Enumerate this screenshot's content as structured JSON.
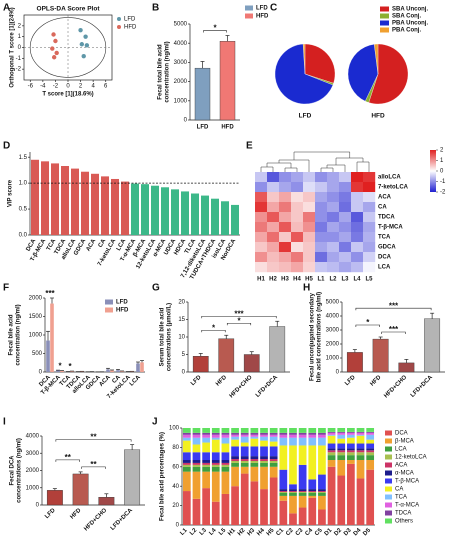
{
  "chart_data": [
    {
      "label": "A",
      "type": "scatter",
      "title": "OPLS-DA Score Plot",
      "xlabel": "T score [1](18.6%)",
      "ylabel": [
        "Orthogonal T score [1](24%)"
      ],
      "xlim": [
        -7,
        7
      ],
      "xticks": [
        -6,
        -4,
        -2,
        0,
        2,
        4,
        6
      ],
      "ylim": [
        -3,
        3
      ],
      "yticks": [
        -2,
        -1,
        0,
        1,
        2
      ],
      "series": [
        {
          "name": "LFD",
          "color": "#5f97a8",
          "x": [
            2.0,
            2.8,
            2.2,
            3.0,
            2.5
          ],
          "values": [
            1.6,
            1.0,
            0.3,
            0.2,
            -0.8
          ]
        },
        {
          "name": "HFD",
          "color": "#d9695c",
          "x": [
            -2.3,
            -2.0,
            -2.5,
            -1.8,
            -2.2
          ],
          "values": [
            1.2,
            0.6,
            -0.1,
            -0.5,
            -0.9
          ]
        }
      ]
    },
    {
      "label": "B",
      "type": "bar",
      "categories": [
        "LFD",
        "HFD"
      ],
      "values": [
        2700,
        4100
      ],
      "errors": [
        350,
        300
      ],
      "colors": [
        "#7f9fbf",
        "#f07874"
      ],
      "ylabel": [
        "Fecal total bile acid",
        "concentration (ng/ml)"
      ],
      "ylim": [
        0,
        5000
      ],
      "yticks": [
        0,
        1000,
        2000,
        3000,
        4000,
        5000
      ],
      "annotations": [
        "*"
      ],
      "legend": true
    },
    {
      "label": "C",
      "type": "pie",
      "labels": [
        "SBA Unconj.",
        "SBA Conj.",
        "PBA Unconj.",
        "PBA Conj."
      ],
      "colors": [
        "#d42020",
        "#8cb030",
        "#1a2ad0",
        "#f0a030"
      ],
      "pies": [
        {
          "name": "LFD",
          "values": [
            30,
            1,
            68,
            1
          ]
        },
        {
          "name": "HFD",
          "values": [
            55,
            2,
            41,
            2
          ]
        }
      ]
    },
    {
      "label": "D",
      "type": "bar",
      "categories": [
        "DCA",
        "T-β-MCA",
        "TCA",
        "TDCA",
        "alloLCA",
        "GDCA",
        "ACA",
        "CA",
        "7-ketoLCA",
        "LCA",
        "T-α-MCA",
        "β-MCA",
        "12-ketoLCA",
        "α-MCA",
        "UDCA",
        "HDCA",
        "TLCA",
        "7,12-diketoLCA",
        "TUDCA+THDCA",
        "isoLCA",
        "NorDCA"
      ],
      "values": [
        1.45,
        1.42,
        1.38,
        1.33,
        1.28,
        1.22,
        1.18,
        1.13,
        1.08,
        1.03,
        0.99,
        0.98,
        0.95,
        0.92,
        0.88,
        0.84,
        0.8,
        0.76,
        0.7,
        0.65,
        0.58
      ],
      "colors": [
        "#d95a55",
        "#3cb889"
      ],
      "threshold": 1,
      "ylabel": [
        "VIP score"
      ],
      "ylim": [
        0,
        1.6
      ],
      "yticks": [
        {
          "value": 0,
          "label": "0.0"
        },
        0.5,
        {
          "value": 1,
          "label": "1.0"
        },
        1.5
      ]
    },
    {
      "label": "E",
      "type": "heatmap",
      "rows": [
        "alloLCA",
        "7-ketoLCA",
        "ACA",
        "CA",
        "TDCA",
        "T-β-MCA",
        "TCA",
        "GDCA",
        "DCA",
        "LCA"
      ],
      "columns": [
        "H1",
        "H2",
        "H3",
        "H4",
        "H5",
        "L1",
        "L2",
        "L3",
        "L4",
        "L5"
      ],
      "values": [
        [
          -0.5,
          -1.5,
          -1,
          -0.8,
          -0.5,
          -1,
          -0.8,
          -0.5,
          2,
          1.8
        ],
        [
          -1,
          -0.5,
          -0.8,
          -1,
          -0.3,
          -0.5,
          -0.8,
          -1,
          1.8,
          2
        ],
        [
          1.5,
          0.5,
          0.8,
          0.3,
          0.5,
          -0.8,
          -1,
          -1.2,
          -0.5,
          -0.3
        ],
        [
          1.8,
          0.8,
          1.2,
          0.5,
          0.3,
          -1,
          -0.8,
          -1.3,
          -0.5,
          -0.8
        ],
        [
          1,
          1.5,
          0.8,
          0.5,
          1.2,
          -1,
          -1.2,
          -0.8,
          -1.5,
          -0.5
        ],
        [
          1.2,
          0.8,
          1.5,
          0.6,
          1,
          -1.2,
          -0.8,
          -1,
          -1.3,
          -0.8
        ],
        [
          0.8,
          1.3,
          0.5,
          1.5,
          0.6,
          -1,
          -1,
          -0.8,
          -1.2,
          -0.7
        ],
        [
          0.5,
          0.8,
          1.8,
          0.3,
          0.5,
          -0.8,
          -0.6,
          -1.2,
          -0.5,
          -0.8
        ],
        [
          1,
          0.6,
          0.8,
          1.2,
          0.5,
          -1.3,
          -0.8,
          -0.6,
          -1,
          -0.4
        ],
        [
          0.3,
          0.5,
          0.6,
          0.8,
          0.4,
          -0.5,
          -0.6,
          -0.8,
          -0.6,
          -0.1
        ]
      ],
      "zlim": [
        -2,
        2
      ],
      "zticks": [
        2,
        1,
        0,
        -1,
        -2
      ],
      "colors": [
        "#2020d0",
        "#ffffff",
        "#e02020"
      ]
    },
    {
      "label": "F",
      "type": "bar",
      "categories": [
        "DCA",
        "T-β-MCA",
        "TCA",
        "TDCA",
        "alloLCA",
        "GDCA",
        "ACA",
        "CA",
        "7-ketoLCA",
        "LCA"
      ],
      "series": [
        {
          "name": "LFD",
          "color": "#8a8fb8",
          "values": [
            850,
            40,
            10,
            8,
            5,
            3,
            70,
            50,
            10,
            230
          ],
          "errors": [
            250,
            10,
            3,
            2,
            1,
            1,
            30,
            20,
            3,
            40
          ]
        },
        {
          "name": "HFD",
          "color": "#f0a090",
          "values": [
            1850,
            30,
            20,
            15,
            8,
            5,
            40,
            20,
            15,
            260
          ],
          "errors": [
            150,
            8,
            5,
            4,
            2,
            1,
            15,
            8,
            4,
            50
          ]
        }
      ],
      "ylabel": [
        "Fecal bile acid",
        "concentration (ng/ml)"
      ],
      "ylim": [
        0,
        2000
      ],
      "yticks": [
        0,
        500,
        1000,
        1500,
        2000
      ],
      "annotations": [
        "***",
        "*",
        "*"
      ],
      "legend": true
    },
    {
      "label": "G",
      "type": "bar",
      "categories": [
        "LFD",
        "HFD",
        "HFD+CHO",
        "LFD+DCA"
      ],
      "values": [
        4.5,
        9.5,
        5,
        13
      ],
      "errors": [
        0.8,
        1.0,
        0.8,
        1.5
      ],
      "colors": [
        "#b2403a",
        "#b85a50",
        "#a04848",
        "#b4b4b4"
      ],
      "ylabel": [
        "Serum total bile acid",
        "concentrations (μmol/L)"
      ],
      "ylim": [
        0,
        20
      ],
      "yticks": [
        0,
        5,
        10,
        15,
        20
      ],
      "annotations": [
        "*",
        "*",
        "***"
      ]
    },
    {
      "label": "H",
      "type": "bar",
      "categories": [
        "LFD",
        "HFD",
        "HFD+CHO",
        "LFD+DCA"
      ],
      "values": [
        1400,
        2350,
        650,
        3800
      ],
      "errors": [
        200,
        150,
        250,
        400
      ],
      "colors": [
        "#b2403a",
        "#b85a50",
        "#a04848",
        "#b4b4b4"
      ],
      "ylabel": [
        "Fecal unconjugated secondary",
        "bile acid concentrations (ng/ml)"
      ],
      "ylim": [
        0,
        5000
      ],
      "yticks": [
        0,
        1000,
        2000,
        3000,
        4000,
        5000
      ],
      "annotations": [
        "*",
        "***",
        "***"
      ]
    },
    {
      "label": "I",
      "type": "bar",
      "categories": [
        "LFD",
        "HFD",
        "HFD+CHO",
        "LFD+DCA"
      ],
      "values": [
        850,
        1800,
        450,
        3200
      ],
      "errors": [
        100,
        120,
        200,
        300
      ],
      "colors": [
        "#b2403a",
        "#b85a50",
        "#a04848",
        "#b4b4b4"
      ],
      "ylabel": [
        "Fecal DCA",
        "concentrations (ng/ml)"
      ],
      "ylim": [
        0,
        4000
      ],
      "yticks": [
        0,
        1000,
        2000,
        3000,
        4000
      ],
      "annotations": [
        "**",
        "**",
        "**"
      ]
    },
    {
      "label": "J",
      "type": "bar",
      "stacked": true,
      "categories": [
        "L1",
        "L2",
        "L3",
        "L4",
        "L5",
        "H1",
        "H2",
        "H3",
        "H4",
        "H5",
        "C1",
        "C2",
        "C3",
        "C4",
        "C5",
        "D1",
        "D2",
        "D3",
        "D4",
        "D5"
      ],
      "ylabel": [
        "Fecal bile acid percentages (%)"
      ],
      "ylim": [
        0,
        100
      ],
      "yticks": [
        0,
        20,
        40,
        60,
        80,
        100
      ],
      "legend": true,
      "series": [
        {
          "name": "DCA",
          "color": "#e05050",
          "values": [
            35,
            27,
            38,
            24,
            32,
            40,
            53,
            45,
            37,
            49,
            25,
            12,
            18,
            28,
            16,
            60,
            51,
            63,
            48,
            57
          ]
        },
        {
          "name": "β-MCA",
          "color": "#f0a030",
          "values": [
            20,
            28,
            17,
            31,
            23,
            20,
            7,
            15,
            23,
            11,
            5,
            18,
            12,
            2,
            14,
            7,
            16,
            4,
            19,
            10
          ]
        },
        {
          "name": "LCA",
          "color": "#3f9f3f",
          "values": [
            5,
            5,
            5,
            5,
            5,
            4,
            4,
            4,
            4,
            4,
            3,
            3,
            3,
            3,
            3,
            5,
            5,
            5,
            5,
            5
          ]
        },
        {
          "name": "12-ketoLCA",
          "color": "#a8c050",
          "values": [
            2,
            2,
            2,
            2,
            2,
            2,
            2,
            2,
            2,
            2,
            1,
            1,
            1,
            1,
            1,
            3,
            3,
            3,
            3,
            3
          ]
        },
        {
          "name": "ACA",
          "color": "#cc3366",
          "values": [
            2,
            2,
            2,
            2,
            2,
            2,
            2,
            2,
            2,
            2,
            1,
            1,
            1,
            1,
            1,
            2,
            2,
            2,
            2,
            2
          ]
        },
        {
          "name": "α-MCA",
          "color": "#1c1c8c",
          "values": [
            3,
            3,
            3,
            3,
            3,
            3,
            3,
            3,
            3,
            3,
            2,
            2,
            2,
            2,
            2,
            2,
            2,
            2,
            2,
            2
          ]
        },
        {
          "name": "T-β-MCA",
          "color": "#3a3af0",
          "values": [
            8,
            8,
            8,
            8,
            8,
            10,
            10,
            10,
            10,
            10,
            20,
            5,
            25,
            10,
            15,
            5,
            5,
            5,
            5,
            5
          ]
        },
        {
          "name": "CA",
          "color": "#f2f020",
          "values": [
            12,
            8,
            10,
            13,
            9,
            7,
            4,
            8,
            6,
            5,
            25,
            40,
            20,
            35,
            30,
            8,
            5,
            6,
            8,
            4
          ]
        },
        {
          "name": "TCA",
          "color": "#80c0ff",
          "values": [
            3,
            7,
            5,
            2,
            6,
            3,
            6,
            2,
            4,
            5,
            8,
            8,
            8,
            8,
            8,
            1,
            4,
            3,
            1,
            5
          ]
        },
        {
          "name": "T-α-MCA",
          "color": "#e060e0",
          "values": [
            3,
            3,
            3,
            3,
            3,
            2,
            2,
            2,
            2,
            2,
            3,
            3,
            3,
            3,
            3,
            2,
            2,
            2,
            2,
            2
          ]
        },
        {
          "name": "TDCA",
          "color": "#8040a0",
          "values": [
            2,
            2,
            2,
            2,
            2,
            2,
            2,
            2,
            2,
            2,
            2,
            2,
            2,
            2,
            2,
            1,
            1,
            1,
            1,
            1
          ]
        },
        {
          "name": "Others",
          "color": "#60e060",
          "values": [
            5,
            5,
            5,
            5,
            5,
            5,
            5,
            5,
            5,
            5,
            5,
            5,
            5,
            5,
            5,
            4,
            4,
            4,
            4,
            4
          ]
        }
      ]
    }
  ]
}
